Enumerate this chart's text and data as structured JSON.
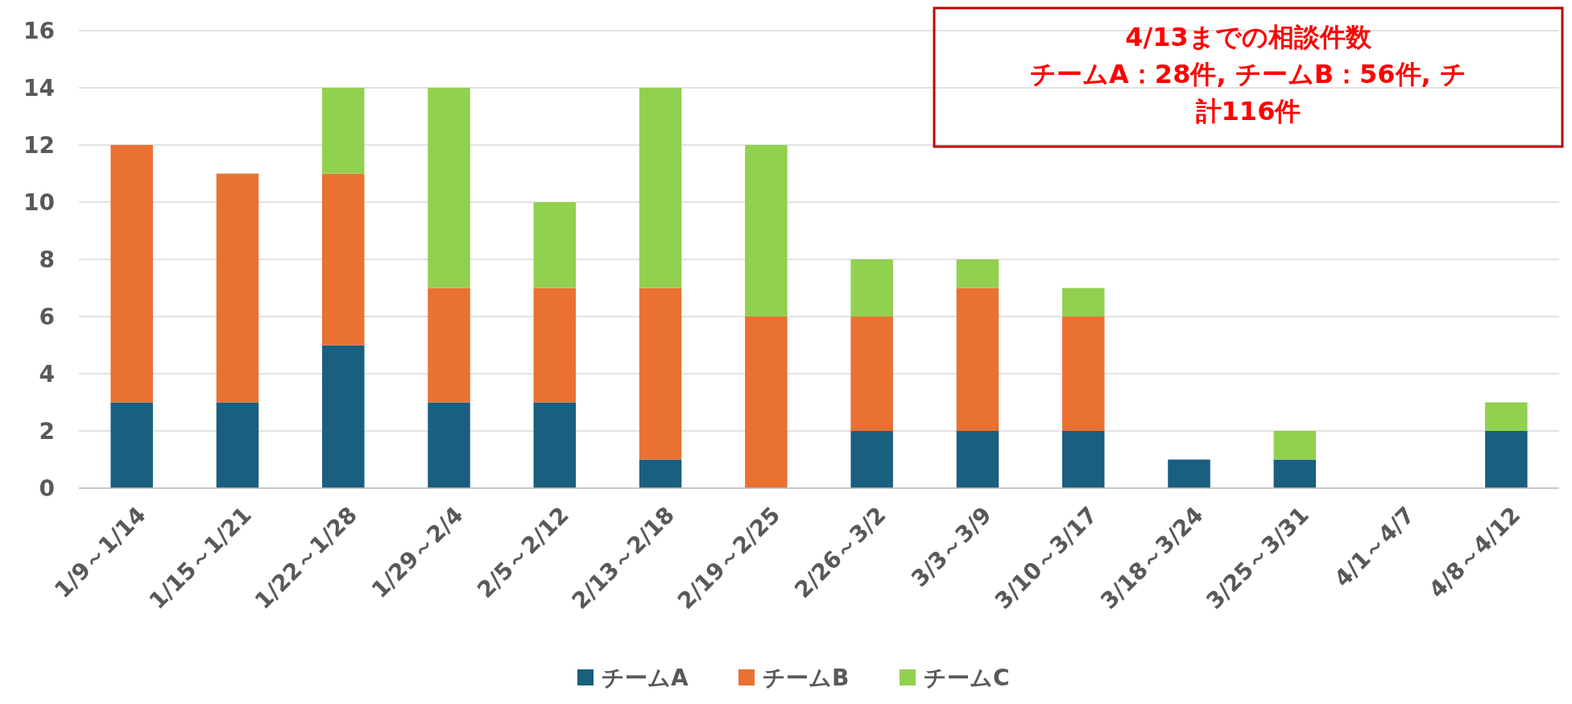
{
  "chart_data": {
    "type": "bar",
    "stacked": true,
    "categories": [
      "1/9～1/14",
      "1/15～1/21",
      "1/22～1/28",
      "1/29～2/4",
      "2/5～2/12",
      "2/13～2/18",
      "2/19～2/25",
      "2/26～3/2",
      "3/3～3/9",
      "3/10～3/17",
      "3/18～3/24",
      "3/25～3/31",
      "4/1～4/7",
      "4/8～4/12"
    ],
    "series": [
      {
        "name": "チームA",
        "color": "#1a5e80",
        "values": [
          3,
          3,
          5,
          3,
          3,
          1,
          0,
          2,
          2,
          2,
          1,
          1,
          0,
          2
        ]
      },
      {
        "name": "チームB",
        "color": "#e97132",
        "values": [
          9,
          8,
          6,
          4,
          4,
          6,
          6,
          4,
          5,
          4,
          0,
          0,
          0,
          0
        ]
      },
      {
        "name": "チームC",
        "color": "#92d050",
        "values": [
          0,
          0,
          3,
          7,
          3,
          7,
          6,
          2,
          1,
          1,
          0,
          1,
          0,
          1
        ]
      }
    ],
    "ylim": [
      0,
      16
    ],
    "yticks": [
      0,
      2,
      4,
      6,
      8,
      10,
      12,
      14,
      16
    ],
    "grid": "y",
    "legend": "bottom",
    "annotations": [
      "4/13までの相談件数",
      "チームA：28件, チームB：56件, チ",
      "計116件"
    ]
  }
}
